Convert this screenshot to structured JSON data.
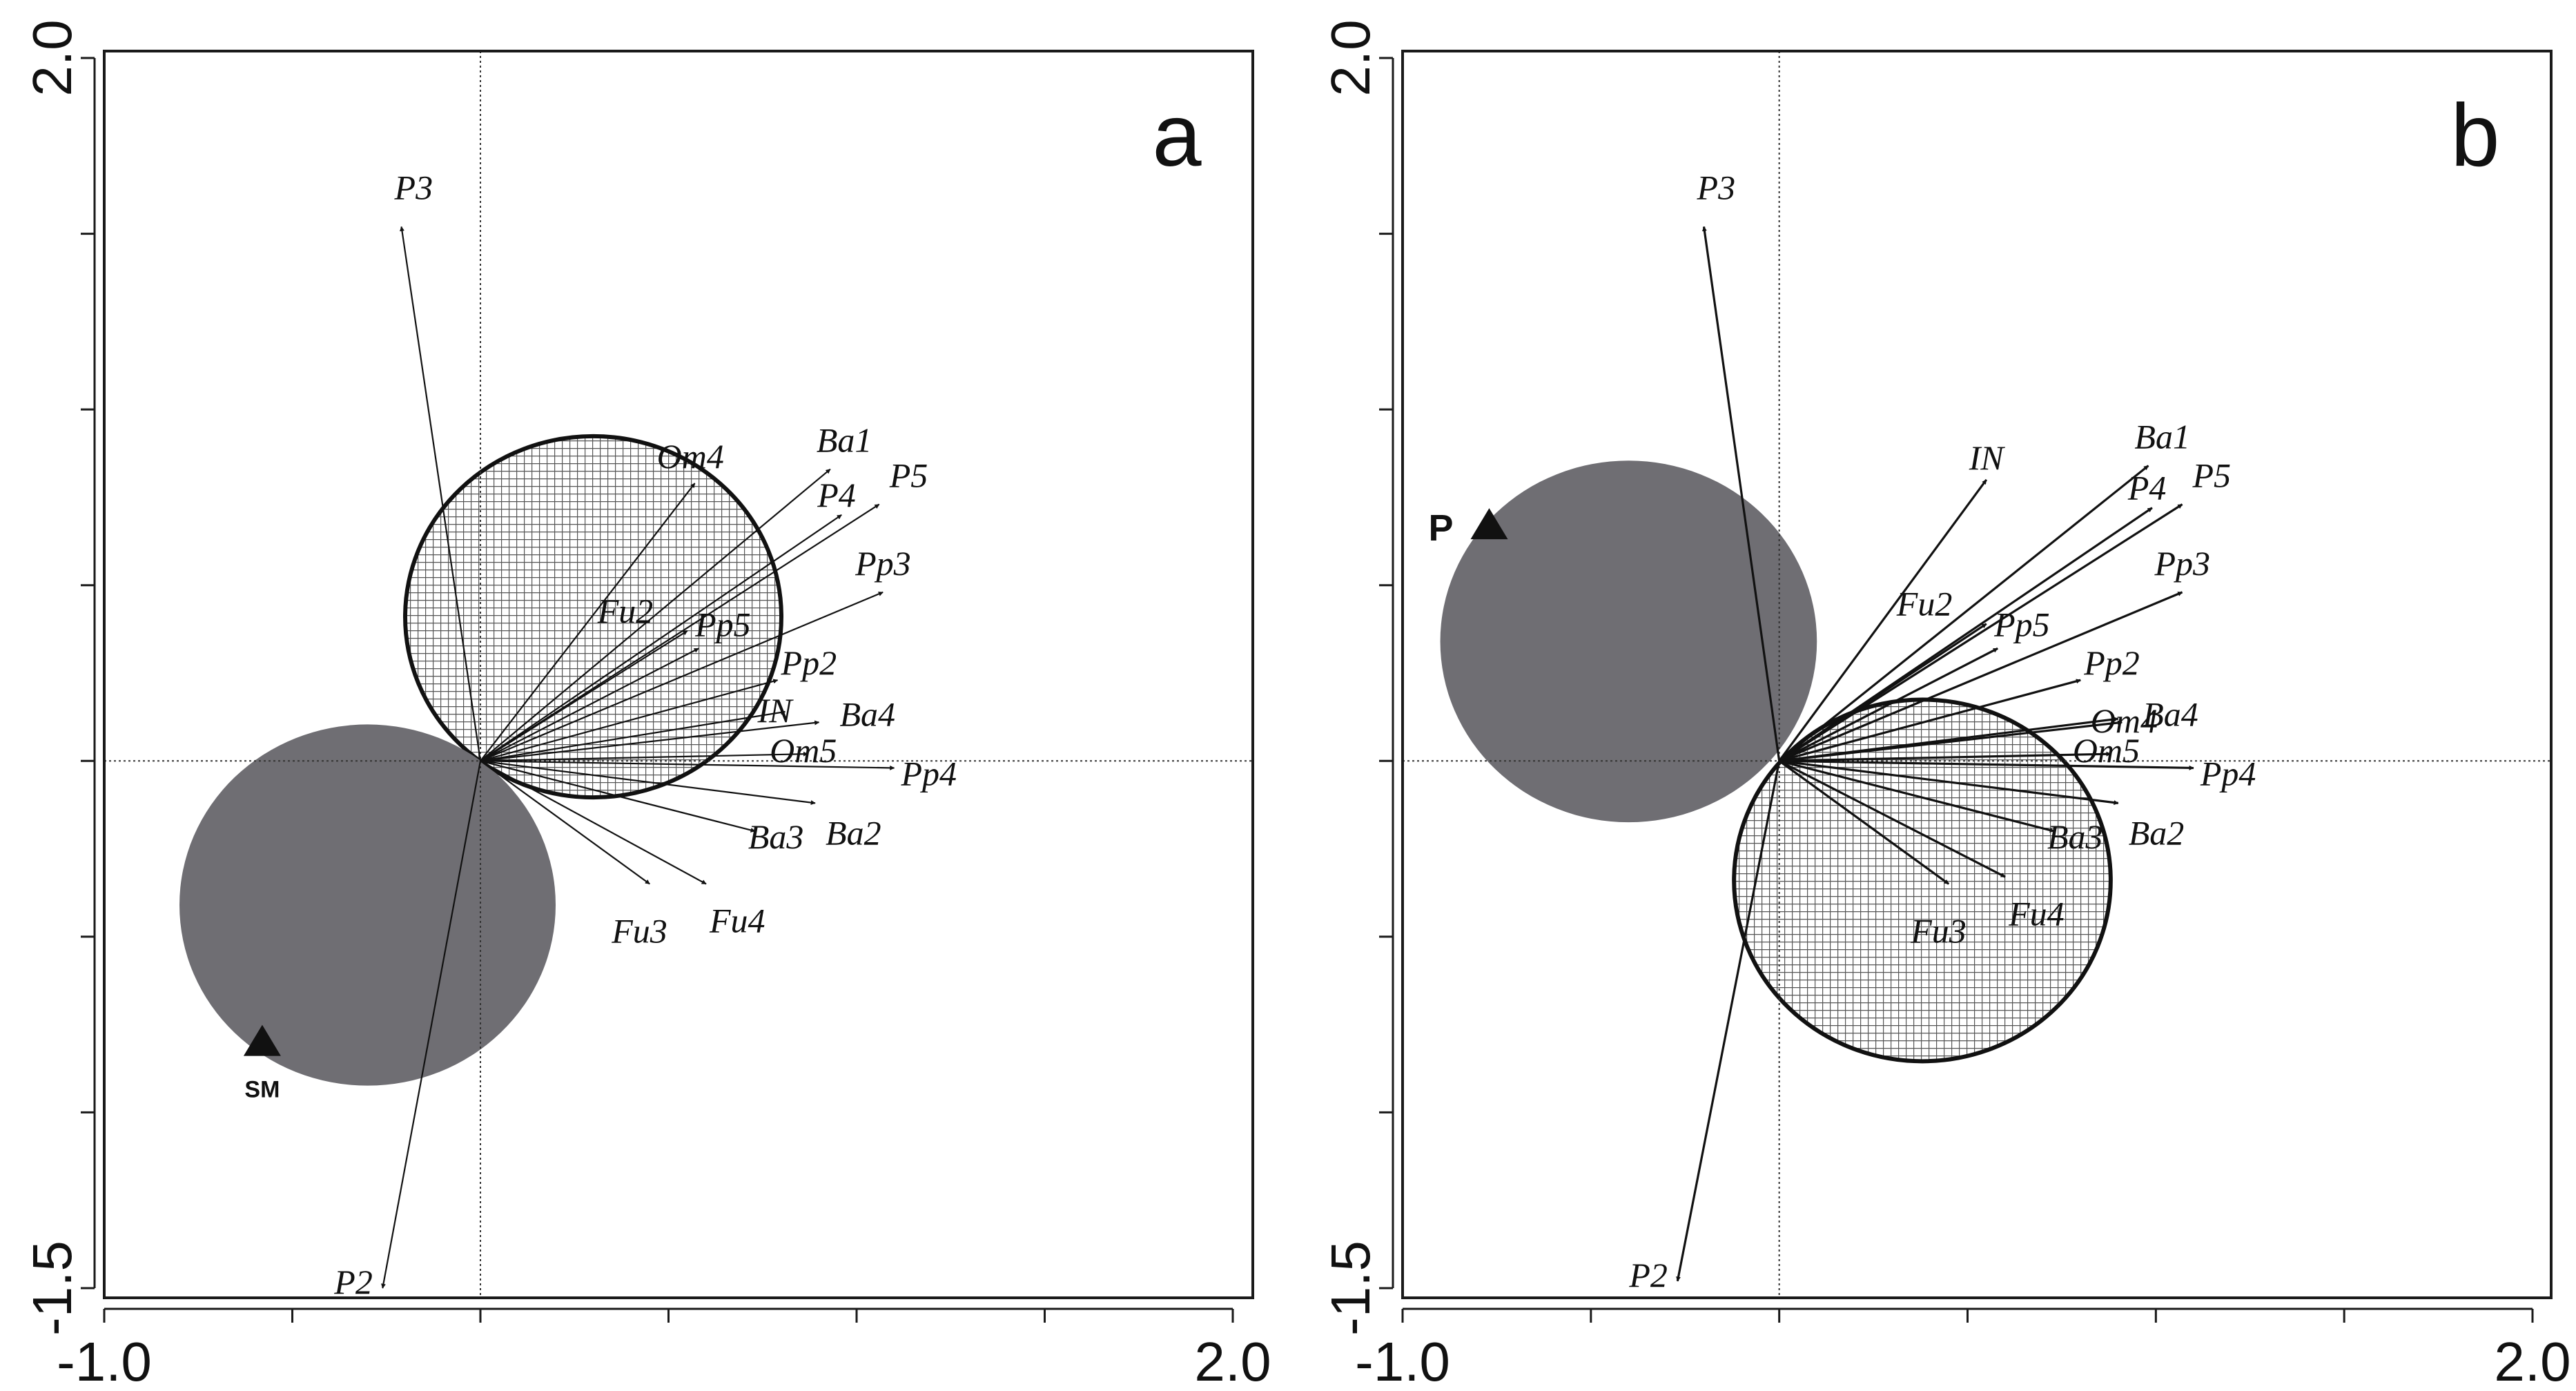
{
  "chart_data": [
    {
      "type": "scatter",
      "panel_label": "a",
      "xlim": [
        -1.0,
        2.0
      ],
      "ylim": [
        -1.5,
        2.0
      ],
      "x_tick_labels": [
        "-1.0",
        "2.0"
      ],
      "y_tick_labels": [
        "2.0",
        "-1.5"
      ],
      "grid": false,
      "origin_lines": true,
      "circles": [
        {
          "fill": "hatched",
          "cx": 0.3,
          "cy": 0.41,
          "r": 0.5
        },
        {
          "fill": "#6f6e73",
          "cx": -0.3,
          "cy": -0.41,
          "r": 0.5
        }
      ],
      "points": [
        {
          "label": "SM",
          "x": -0.58,
          "y": -0.8
        }
      ],
      "vectors": [
        {
          "label": "P3",
          "x": -0.21,
          "y": 1.52
        },
        {
          "label": "P2",
          "x": -0.26,
          "y": -1.5
        },
        {
          "label": "Om4",
          "x": 0.57,
          "y": 0.79
        },
        {
          "label": "Ba1",
          "x": 0.93,
          "y": 0.83
        },
        {
          "label": "P4",
          "x": 0.96,
          "y": 0.7
        },
        {
          "label": "P5",
          "x": 1.06,
          "y": 0.73
        },
        {
          "label": "Pp3",
          "x": 1.07,
          "y": 0.48
        },
        {
          "label": "Fu2",
          "x": 0.55,
          "y": 0.37
        },
        {
          "label": "Pp5",
          "x": 0.58,
          "y": 0.32
        },
        {
          "label": "Pp2",
          "x": 0.79,
          "y": 0.23
        },
        {
          "label": "IN",
          "x": 0.81,
          "y": 0.14
        },
        {
          "label": "Ba4",
          "x": 0.9,
          "y": 0.11
        },
        {
          "label": "Om5",
          "x": 0.87,
          "y": 0.02
        },
        {
          "label": "Pp4",
          "x": 1.1,
          "y": -0.02
        },
        {
          "label": "Ba2",
          "x": 0.89,
          "y": -0.12
        },
        {
          "label": "Ba3",
          "x": 0.73,
          "y": -0.2
        },
        {
          "label": "Fu4",
          "x": 0.6,
          "y": -0.35
        },
        {
          "label": "Fu3",
          "x": 0.45,
          "y": -0.35
        }
      ]
    },
    {
      "type": "scatter",
      "panel_label": "b",
      "xlim": [
        -1.0,
        2.0
      ],
      "ylim": [
        -1.5,
        2.0
      ],
      "x_tick_labels": [
        "-1.0",
        "2.0"
      ],
      "y_tick_labels": [
        "2.0",
        "-1.5"
      ],
      "grid": false,
      "origin_lines": true,
      "circles": [
        {
          "fill": "#6f6e73",
          "cx": -0.4,
          "cy": 0.34,
          "r": 0.5
        },
        {
          "fill": "hatched",
          "cx": 0.38,
          "cy": -0.34,
          "r": 0.5
        }
      ],
      "points": [
        {
          "label": "P",
          "x": -0.77,
          "y": 0.67
        }
      ],
      "vectors": [
        {
          "label": "P3",
          "x": -0.2,
          "y": 1.52
        },
        {
          "label": "P2",
          "x": -0.27,
          "y": -1.48
        },
        {
          "label": "IN",
          "x": 0.55,
          "y": 0.8
        },
        {
          "label": "Ba1",
          "x": 0.98,
          "y": 0.84
        },
        {
          "label": "P4",
          "x": 0.99,
          "y": 0.72
        },
        {
          "label": "P5",
          "x": 1.07,
          "y": 0.73
        },
        {
          "label": "Pp3",
          "x": 1.07,
          "y": 0.48
        },
        {
          "label": "Fu2",
          "x": 0.55,
          "y": 0.39
        },
        {
          "label": "Pp5",
          "x": 0.58,
          "y": 0.32
        },
        {
          "label": "Pp2",
          "x": 0.8,
          "y": 0.23
        },
        {
          "label": "Om4",
          "x": 0.9,
          "y": 0.12
        },
        {
          "label": "Ba4",
          "x": 0.91,
          "y": 0.11
        },
        {
          "label": "Om5",
          "x": 0.88,
          "y": 0.02
        },
        {
          "label": "Pp4",
          "x": 1.1,
          "y": -0.02
        },
        {
          "label": "Ba2",
          "x": 0.9,
          "y": -0.12
        },
        {
          "label": "Ba3",
          "x": 0.73,
          "y": -0.2
        },
        {
          "label": "Fu4",
          "x": 0.6,
          "y": -0.33
        },
        {
          "label": "Fu3",
          "x": 0.45,
          "y": -0.35
        }
      ]
    }
  ],
  "colors": {
    "shaded_circle": "#6f6e73",
    "hatch_lines": "#555555",
    "ink": "#111111"
  }
}
